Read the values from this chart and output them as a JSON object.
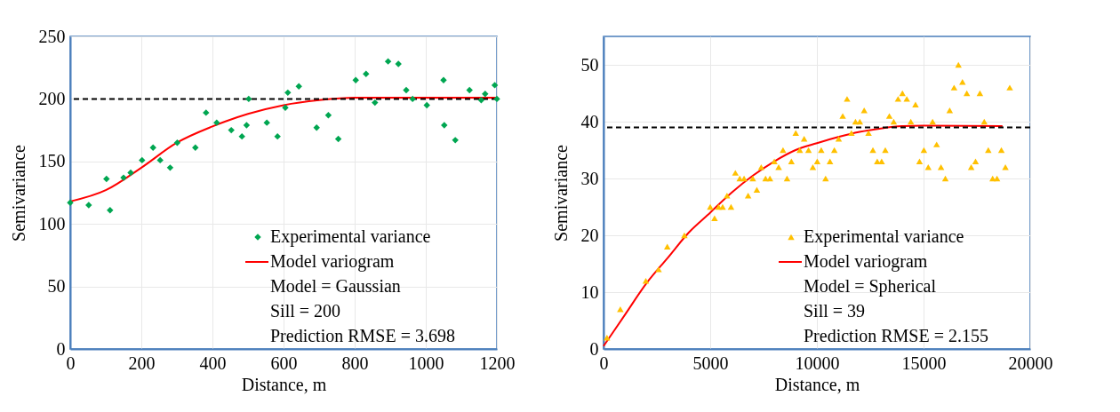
{
  "chart_data": [
    {
      "type": "scatter",
      "xlabel": "Distance, m",
      "ylabel": "Semivariance",
      "xlim": [
        0,
        1200
      ],
      "xticks": [
        0,
        200,
        400,
        600,
        800,
        1000,
        1200
      ],
      "ylim": [
        0,
        250
      ],
      "yticks": [
        0,
        50,
        100,
        150,
        200,
        250
      ],
      "grid": true,
      "legend": "bottom right",
      "series": [
        {
          "name": "Experimental variance",
          "marker": "diamond",
          "color": "#00a651",
          "x": [
            0,
            52,
            102,
            112,
            150,
            170,
            202,
            233,
            253,
            281,
            301,
            352,
            382,
            412,
            453,
            483,
            496,
            502,
            553,
            583,
            605,
            612,
            643,
            693,
            726,
            754,
            803,
            832,
            857,
            894,
            923,
            945,
            963,
            1003,
            1050,
            1052,
            1083,
            1123,
            1156,
            1167,
            1194,
            1200
          ],
          "values": [
            117,
            115,
            136,
            111,
            137,
            141,
            151,
            161,
            151,
            145,
            165,
            161,
            189,
            181,
            175,
            170,
            179,
            200,
            181,
            170,
            193,
            205,
            210,
            177,
            187,
            168,
            215,
            220,
            197,
            230,
            228,
            207,
            200,
            195,
            215,
            179,
            167,
            207,
            199,
            204,
            211,
            200
          ]
        },
        {
          "name": "Model variogram",
          "type": "line",
          "color": "#ff0000",
          "x": [
            0,
            100,
            200,
            300,
            400,
            500,
            600,
            700,
            800,
            900,
            1000,
            1100,
            1200
          ],
          "values": [
            118,
            127,
            145,
            165,
            178,
            188,
            195,
            199,
            201,
            201,
            201,
            201,
            201
          ]
        }
      ],
      "ref_lines": [
        {
          "axis": "y",
          "value": 200,
          "color": "#000000",
          "line_style": "dashed"
        }
      ],
      "annotations": [
        "Model = Gaussian",
        "Sill = 200",
        "Prediction RMSE = 3.698"
      ]
    },
    {
      "type": "scatter",
      "xlabel": "Distance, m",
      "ylabel": "Semivariance",
      "xlim": [
        0,
        20000
      ],
      "xticks": [
        0,
        5000,
        10000,
        15000,
        20000
      ],
      "ylim": [
        0,
        55
      ],
      "yticks": [
        0,
        10,
        20,
        30,
        40,
        50
      ],
      "grid": true,
      "legend": "bottom right",
      "series": [
        {
          "name": "Experimental variance",
          "marker": "triangle",
          "color": "#ffc000",
          "x": [
            160,
            786,
            1981,
            2579,
            2987,
            3789,
            5000,
            5204,
            5393,
            5582,
            5786,
            5975,
            6179,
            6384,
            6588,
            6777,
            6997,
            7186,
            7390,
            7594,
            7799,
            8004,
            8208,
            8412,
            8601,
            8805,
            9010,
            9198,
            9403,
            9607,
            9811,
            10016,
            10204,
            10409,
            10613,
            10818,
            11022,
            11211,
            11415,
            11619,
            11808,
            12013,
            12217,
            12421,
            12626,
            12830,
            13035,
            13208,
            13396,
            13601,
            13805,
            14009,
            14214,
            14403,
            14623,
            14811,
            15016,
            15220,
            15424,
            15613,
            15818,
            16022,
            16226,
            16431,
            16635,
            16824,
            17028,
            17233,
            17437,
            17642,
            17846,
            18035,
            18239,
            18443,
            18648,
            18837,
            19041
          ],
          "values": [
            2,
            7,
            12,
            14,
            18,
            20,
            25,
            23,
            25,
            25,
            27,
            25,
            31,
            30,
            30,
            27,
            30,
            28,
            32,
            30,
            30,
            33,
            32,
            35,
            30,
            33,
            38,
            35,
            37,
            35,
            32,
            33,
            35,
            30,
            33,
            35,
            37,
            41,
            44,
            38,
            40,
            40,
            42,
            38,
            35,
            33,
            33,
            35,
            41,
            40,
            44,
            45,
            44,
            40,
            43,
            33,
            35,
            32,
            40,
            36,
            32,
            30,
            42,
            46,
            50,
            47,
            45,
            32,
            33,
            45,
            40,
            35,
            30,
            30,
            35,
            32,
            46
          ]
        },
        {
          "name": "Model variogram",
          "type": "line",
          "color": "#ff0000",
          "x": [
            0,
            1000,
            2000,
            3000,
            4000,
            5000,
            6000,
            7000,
            8000,
            9000,
            10000,
            11000,
            12000,
            13000,
            14000,
            15000,
            18700
          ],
          "values": [
            0.5,
            6,
            11.5,
            16,
            20.5,
            24,
            27.5,
            30.5,
            33,
            35,
            36.2,
            37.3,
            38.2,
            38.8,
            39.2,
            39.3,
            39.2
          ]
        }
      ],
      "ref_lines": [
        {
          "axis": "y",
          "value": 39,
          "color": "#000000",
          "line_style": "dashed"
        }
      ],
      "annotations": [
        "Model = Spherical",
        "Sill = 39",
        "Prediction RMSE = 2.155"
      ]
    }
  ]
}
